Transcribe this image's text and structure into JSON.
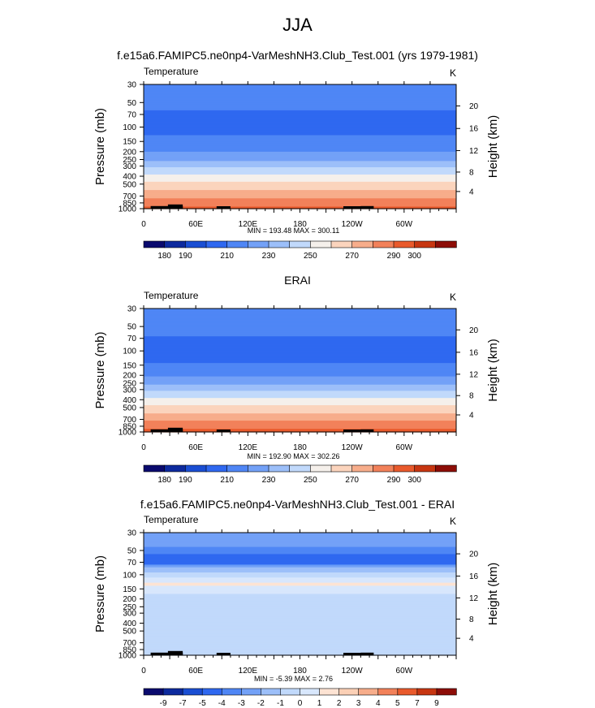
{
  "main_title": "JJA",
  "panels": [
    {
      "title": "f.e15a6.FAMIPC5.ne0np4-VarMeshNH3.Club_Test.001 (yrs 1979-1981)",
      "left_label": "Temperature",
      "right_label": "K",
      "stats": "MIN = 193.48  MAX = 300.11",
      "colorbar_labels": [
        "180",
        "190",
        "210",
        "230",
        "250",
        "270",
        "290",
        "300"
      ]
    },
    {
      "title": "ERAI",
      "left_label": "Temperature",
      "right_label": "K",
      "stats": "MIN = 192.90  MAX = 302.26",
      "colorbar_labels": [
        "180",
        "190",
        "210",
        "230",
        "250",
        "270",
        "290",
        "300"
      ]
    },
    {
      "title": "f.e15a6.FAMIPC5.ne0np4-VarMeshNH3.Club_Test.001 - ERAI",
      "left_label": "Temperature",
      "right_label": "K",
      "stats": "MIN =  -5.39  MAX =  2.76",
      "colorbar_labels": [
        "-9",
        "-7",
        "-5",
        "-4",
        "-3",
        "-2",
        "-1",
        "0",
        "1",
        "2",
        "3",
        "4",
        "5",
        "7",
        "9"
      ]
    }
  ],
  "chart_data": [
    {
      "type": "heatmap",
      "title": "f.e15a6.FAMIPC5.ne0np4-VarMeshNH3.Club_Test.001 (yrs 1979-1981)",
      "xlabel": "",
      "ylabel": "Pressure (mb)",
      "y2label": "Height (km)",
      "x_ticks": [
        "0",
        "60E",
        "120E",
        "180",
        "120W",
        "60W"
      ],
      "x_tick_lon": [
        0,
        60,
        120,
        180,
        240,
        300
      ],
      "xlim": [
        0,
        360
      ],
      "y_ticks": [
        "30",
        "50",
        "70",
        "100",
        "150",
        "200",
        "250",
        "300",
        "400",
        "500",
        "700",
        "850",
        "1000"
      ],
      "y_tick_values": [
        30,
        50,
        70,
        100,
        150,
        200,
        250,
        300,
        400,
        500,
        700,
        850,
        1000
      ],
      "ylim": [
        1000,
        30
      ],
      "y_scale": "log",
      "y2_ticks": [
        "4",
        "8",
        "12",
        "16",
        "20"
      ],
      "y2_tick_pressure": [
        616,
        356,
        194,
        104,
        55
      ],
      "levels": [
        180,
        190,
        200,
        210,
        220,
        230,
        240,
        250,
        260,
        270,
        280,
        290,
        300
      ],
      "colors": [
        "#0a0a6e",
        "#0d2a9e",
        "#1a4ed3",
        "#2f68f0",
        "#4f86f5",
        "#73a1f7",
        "#9cbff9",
        "#c1d9fb",
        "#f5f0eb",
        "#fbd4bd",
        "#f7ad8b",
        "#f2815a",
        "#e95a2c",
        "#c73611",
        "#8d0d07"
      ],
      "profile_pressure": [
        30,
        50,
        70,
        100,
        150,
        200,
        250,
        300,
        400,
        500,
        700,
        850,
        1000
      ],
      "profile_value": [
        218,
        214,
        208,
        206,
        213,
        220,
        228,
        238,
        252,
        263,
        277,
        285,
        293
      ],
      "stats": {
        "min": 193.48,
        "max": 300.11
      },
      "units": "K"
    },
    {
      "type": "heatmap",
      "title": "ERAI",
      "xlabel": "",
      "ylabel": "Pressure (mb)",
      "y2label": "Height (km)",
      "x_ticks": [
        "0",
        "60E",
        "120E",
        "180",
        "120W",
        "60W"
      ],
      "x_tick_lon": [
        0,
        60,
        120,
        180,
        240,
        300
      ],
      "xlim": [
        0,
        360
      ],
      "y_ticks": [
        "30",
        "50",
        "70",
        "100",
        "150",
        "200",
        "250",
        "300",
        "400",
        "500",
        "700",
        "850",
        "1000"
      ],
      "y_tick_values": [
        30,
        50,
        70,
        100,
        150,
        200,
        250,
        300,
        400,
        500,
        700,
        850,
        1000
      ],
      "ylim": [
        1000,
        30
      ],
      "y_scale": "log",
      "y2_ticks": [
        "4",
        "8",
        "12",
        "16",
        "20"
      ],
      "y2_tick_pressure": [
        616,
        356,
        194,
        104,
        55
      ],
      "levels": [
        180,
        190,
        200,
        210,
        220,
        230,
        240,
        250,
        260,
        270,
        280,
        290,
        300
      ],
      "colors": [
        "#0a0a6e",
        "#0d2a9e",
        "#1a4ed3",
        "#2f68f0",
        "#4f86f5",
        "#73a1f7",
        "#9cbff9",
        "#c1d9fb",
        "#f5f0eb",
        "#fbd4bd",
        "#f7ad8b",
        "#f2815a",
        "#e95a2c",
        "#c73611",
        "#8d0d07"
      ],
      "profile_pressure": [
        30,
        50,
        70,
        100,
        150,
        200,
        250,
        300,
        400,
        500,
        700,
        850,
        1000
      ],
      "profile_value": [
        218,
        214,
        209,
        205,
        211,
        219,
        228,
        238,
        252,
        263,
        278,
        286,
        295
      ],
      "stats": {
        "min": 192.9,
        "max": 302.26
      },
      "units": "K"
    },
    {
      "type": "heatmap",
      "title": "f.e15a6.FAMIPC5.ne0np4-VarMeshNH3.Club_Test.001 - ERAI",
      "xlabel": "",
      "ylabel": "Pressure (mb)",
      "y2label": "Height (km)",
      "x_ticks": [
        "0",
        "60E",
        "120E",
        "180",
        "120W",
        "60W"
      ],
      "x_tick_lon": [
        0,
        60,
        120,
        180,
        240,
        300
      ],
      "xlim": [
        0,
        360
      ],
      "y_ticks": [
        "30",
        "50",
        "70",
        "100",
        "150",
        "200",
        "250",
        "300",
        "400",
        "500",
        "700",
        "850",
        "1000"
      ],
      "y_tick_values": [
        30,
        50,
        70,
        100,
        150,
        200,
        250,
        300,
        400,
        500,
        700,
        850,
        1000
      ],
      "ylim": [
        1000,
        30
      ],
      "y_scale": "log",
      "y2_ticks": [
        "4",
        "8",
        "12",
        "16",
        "20"
      ],
      "y2_tick_pressure": [
        616,
        356,
        194,
        104,
        55
      ],
      "levels": [
        -9,
        -7,
        -5,
        -4,
        -3,
        -2,
        -1,
        0,
        1,
        2,
        3,
        4,
        5,
        7,
        9
      ],
      "colors": [
        "#0a0a6e",
        "#0d2a9e",
        "#1a4ed3",
        "#2f68f0",
        "#4f86f5",
        "#73a1f7",
        "#9cbff9",
        "#c1d9fb",
        "#d8e7fc",
        "#fde3d3",
        "#fbd0b6",
        "#f7ad8b",
        "#f2815a",
        "#e95a2c",
        "#c73611",
        "#8d0d07"
      ],
      "profile_pressure": [
        30,
        40,
        50,
        60,
        70,
        80,
        100,
        130,
        150,
        200,
        300,
        500,
        700,
        1000
      ],
      "profile_value": [
        -2.5,
        -2.5,
        -3.5,
        -4.5,
        -5.0,
        -2.0,
        -0.5,
        1.3,
        0.5,
        -0.5,
        -0.5,
        -0.5,
        -0.5,
        -0.5
      ],
      "stats": {
        "min": -5.39,
        "max": 2.76
      },
      "units": "K"
    }
  ]
}
